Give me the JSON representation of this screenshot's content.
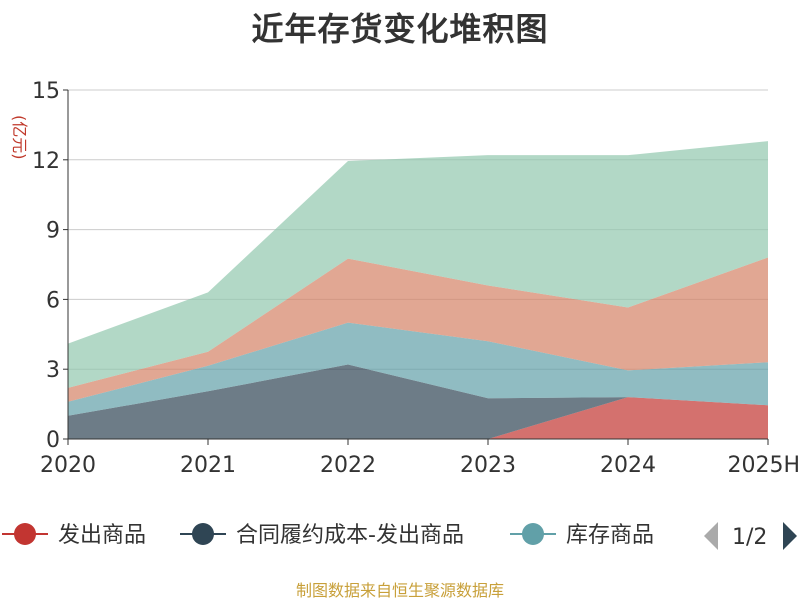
{
  "chart_data": {
    "type": "area",
    "stacked": true,
    "title": "近年存货变化堆积图",
    "unit_label": "(亿元)",
    "categories": [
      "2020",
      "2021",
      "2022",
      "2023",
      "2024",
      "2025H"
    ],
    "ylim": [
      0,
      15
    ],
    "yticks": [
      0,
      3,
      6,
      9,
      12,
      15
    ],
    "grid": true,
    "legend_position": "bottom",
    "series": [
      {
        "name": "发出商品",
        "color": "#c23531",
        "values": [
          0,
          0,
          0,
          0,
          1.8,
          1.45
        ]
      },
      {
        "name": "合同履约成本-发出商品",
        "color": "#2f4554",
        "values": [
          1.0,
          2.05,
          3.2,
          1.75,
          0,
          0
        ]
      },
      {
        "name": "库存商品",
        "color": "#61a0a8",
        "values": [
          0.6,
          1.1,
          1.8,
          2.45,
          1.15,
          1.85
        ]
      },
      {
        "name": "",
        "color": "#d48265",
        "values": [
          0.6,
          0.6,
          2.75,
          2.4,
          2.7,
          4.5
        ]
      },
      {
        "name": "",
        "color": "#91c7ae",
        "values": [
          1.9,
          2.55,
          4.2,
          5.6,
          6.55,
          5.0
        ]
      }
    ]
  },
  "legend": {
    "page_indicator": "1/2"
  },
  "source_note": "制图数据来自恒生聚源数据库"
}
